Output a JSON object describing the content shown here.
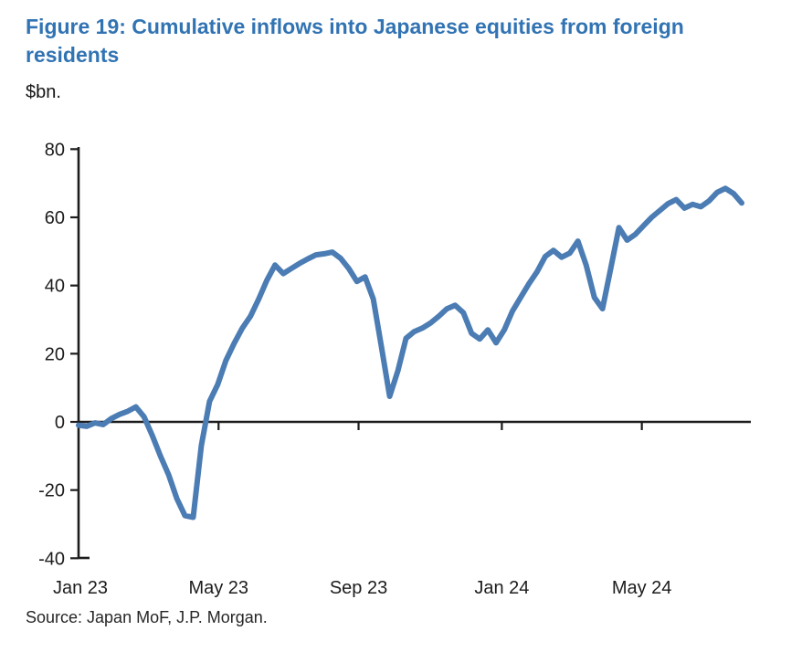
{
  "figure": {
    "title_line1": "Figure 19: Cumulative inflows into Japanese equities from foreign",
    "title_line2": "residents",
    "unit_label": "$bn.",
    "source": "Source: Japan MoF, J.P. Morgan."
  },
  "chart_data": {
    "type": "line",
    "title": "Figure 19: Cumulative inflows into Japanese equities from foreign residents",
    "ylabel": "$bn.",
    "xlabel": "",
    "grid": false,
    "legend": "none",
    "ylim": [
      -40,
      80
    ],
    "y_ticks": [
      80,
      60,
      40,
      20,
      0,
      -20,
      -40
    ],
    "x_tick_labels": [
      "Jan 23",
      "May 23",
      "Sep 23",
      "Jan 24",
      "May 24"
    ],
    "x_tick_weeks": [
      0,
      17.1,
      34.2,
      51.7,
      68.8
    ],
    "x_sampling": "weekly, week 0 = Jan 2023, week 81 = late Jul 2024",
    "series": [
      {
        "name": "Cumulative inflows into Japanese equities from foreign residents ($bn)",
        "values": [
          -1,
          -1.3,
          -0.3,
          -0.8,
          1.0,
          2.2,
          3.1,
          4.4,
          1.5,
          -4,
          -10,
          -15.5,
          -22.5,
          -27.5,
          -28,
          -7,
          6,
          11,
          18,
          23,
          27.5,
          31,
          36,
          41.5,
          46,
          43.5,
          45,
          46.5,
          47.8,
          49,
          49.3,
          49.8,
          48,
          45,
          41.2,
          42.5,
          36,
          22,
          7.5,
          15,
          24.5,
          26.5,
          27.5,
          29,
          31,
          33.2,
          34.2,
          32,
          26,
          24.3,
          27,
          23.2,
          27,
          32.5,
          36.5,
          40.5,
          44,
          48.5,
          50.3,
          48.3,
          49.5,
          53,
          46,
          36.5,
          33.2,
          45,
          57,
          53.3,
          55,
          57.5,
          60,
          62,
          64,
          65.2,
          62.7,
          63.8,
          63.1,
          64.8,
          67.3,
          68.5,
          67,
          64.2
        ]
      }
    ],
    "line_color": "#4b7cb3",
    "axis_color": "#1c1c1c",
    "tick_label_color": "#1c1c1c",
    "title_color": "#3173b3"
  }
}
